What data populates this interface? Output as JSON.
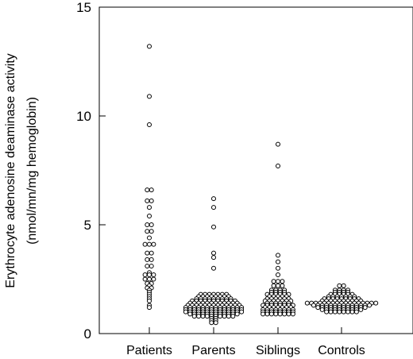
{
  "chart_data": {
    "type": "scatter",
    "style": "beeswarm dot plot",
    "ylabel_line1": "Erythrocyte adenosine deaminase activity",
    "ylabel_line2": "(nmol/mn/mg hemoglobin)",
    "ylim": [
      0,
      15
    ],
    "yticks": [
      0,
      5,
      10,
      15
    ],
    "ytick_labels": [
      "0",
      "5",
      "10",
      "15"
    ],
    "categories": [
      "Patients",
      "Parents",
      "Siblings",
      "Controls"
    ],
    "series": [
      {
        "category": "Patients",
        "values": [
          13.2,
          10.9,
          9.6,
          6.6,
          6.6,
          6.1,
          6.1,
          5.8,
          5.4,
          5.0,
          5.0,
          4.7,
          4.7,
          4.4,
          4.1,
          4.1,
          4.1,
          3.7,
          3.7,
          3.4,
          3.4,
          3.1,
          3.1,
          2.8,
          2.7,
          2.7,
          2.7,
          2.5,
          2.5,
          2.5,
          2.3,
          2.3,
          2.2,
          2.1,
          2.1,
          2.0,
          1.9,
          1.8,
          1.7,
          1.6,
          1.5,
          1.3,
          1.2
        ]
      },
      {
        "category": "Parents",
        "values": [
          6.2,
          5.8,
          4.9,
          3.7,
          3.5,
          3.0,
          1.8,
          1.8,
          1.8,
          1.8,
          1.8,
          1.8,
          1.8,
          1.7,
          1.7,
          1.7,
          1.7,
          1.7,
          1.7,
          1.7,
          1.7,
          1.6,
          1.6,
          1.6,
          1.6,
          1.6,
          1.6,
          1.6,
          1.6,
          1.6,
          1.5,
          1.5,
          1.5,
          1.5,
          1.5,
          1.5,
          1.5,
          1.5,
          1.5,
          1.5,
          1.5,
          1.4,
          1.4,
          1.4,
          1.4,
          1.4,
          1.4,
          1.4,
          1.4,
          1.4,
          1.4,
          1.4,
          1.4,
          1.3,
          1.3,
          1.3,
          1.3,
          1.3,
          1.3,
          1.3,
          1.3,
          1.3,
          1.3,
          1.3,
          1.3,
          1.3,
          1.2,
          1.2,
          1.2,
          1.2,
          1.2,
          1.2,
          1.2,
          1.2,
          1.2,
          1.2,
          1.2,
          1.2,
          1.2,
          1.2,
          1.1,
          1.1,
          1.1,
          1.1,
          1.1,
          1.1,
          1.1,
          1.1,
          1.1,
          1.1,
          1.1,
          1.1,
          1.1,
          1.1,
          1.0,
          1.0,
          1.0,
          1.0,
          1.0,
          1.0,
          1.0,
          1.0,
          1.0,
          1.0,
          1.0,
          1.0,
          1.0,
          1.0,
          0.9,
          0.9,
          0.9,
          0.9,
          0.9,
          0.9,
          0.9,
          0.9,
          0.9,
          0.9,
          0.9,
          0.9,
          0.8,
          0.8,
          0.8,
          0.8,
          0.8,
          0.8,
          0.8,
          0.8,
          0.8,
          0.8,
          0.7,
          0.7,
          0.6,
          0.6,
          0.5,
          0.5
        ]
      },
      {
        "category": "Siblings",
        "values": [
          8.7,
          7.7,
          3.6,
          3.3,
          3.0,
          2.7,
          2.4,
          2.4,
          2.4,
          2.2,
          2.2,
          2.2,
          2.0,
          2.0,
          2.0,
          2.0,
          1.9,
          1.9,
          1.9,
          1.9,
          1.8,
          1.8,
          1.8,
          1.8,
          1.8,
          1.8,
          1.7,
          1.7,
          1.7,
          1.7,
          1.7,
          1.6,
          1.6,
          1.6,
          1.6,
          1.6,
          1.6,
          1.5,
          1.5,
          1.5,
          1.5,
          1.5,
          1.5,
          1.5,
          1.4,
          1.4,
          1.4,
          1.4,
          1.4,
          1.4,
          1.3,
          1.3,
          1.3,
          1.3,
          1.3,
          1.3,
          1.3,
          1.3,
          1.2,
          1.2,
          1.2,
          1.2,
          1.2,
          1.2,
          1.2,
          1.1,
          1.1,
          1.1,
          1.1,
          1.1,
          1.1,
          1.1,
          1.1,
          1.0,
          1.0,
          1.0,
          1.0,
          1.0,
          1.0,
          1.0,
          1.0,
          0.9,
          0.9,
          0.9,
          0.9,
          0.9,
          0.9,
          0.9,
          0.9
        ]
      },
      {
        "category": "Controls",
        "values": [
          2.2,
          2.2,
          2.0,
          2.0,
          2.0,
          2.0,
          1.9,
          1.9,
          1.9,
          1.9,
          1.8,
          1.8,
          1.8,
          1.8,
          1.8,
          1.8,
          1.7,
          1.7,
          1.7,
          1.7,
          1.7,
          1.7,
          1.7,
          1.6,
          1.6,
          1.6,
          1.6,
          1.6,
          1.6,
          1.6,
          1.6,
          1.6,
          1.5,
          1.5,
          1.5,
          1.5,
          1.5,
          1.5,
          1.5,
          1.5,
          1.5,
          1.5,
          1.4,
          1.4,
          1.4,
          1.4,
          1.4,
          1.4,
          1.4,
          1.4,
          1.4,
          1.4,
          1.4,
          1.4,
          1.4,
          1.4,
          1.4,
          1.4,
          1.4,
          1.3,
          1.3,
          1.3,
          1.3,
          1.3,
          1.3,
          1.3,
          1.3,
          1.3,
          1.3,
          1.3,
          1.3,
          1.3,
          1.3,
          1.2,
          1.2,
          1.2,
          1.2,
          1.2,
          1.2,
          1.2,
          1.2,
          1.2,
          1.2,
          1.2,
          1.2,
          1.1,
          1.1,
          1.1,
          1.1,
          1.1,
          1.1,
          1.1,
          1.1,
          1.1,
          1.1,
          1.0,
          1.0,
          1.0,
          1.0,
          1.0,
          1.0,
          1.0,
          1.0
        ]
      }
    ],
    "marker": "hollow-circle",
    "grid": false,
    "legend": "none"
  }
}
